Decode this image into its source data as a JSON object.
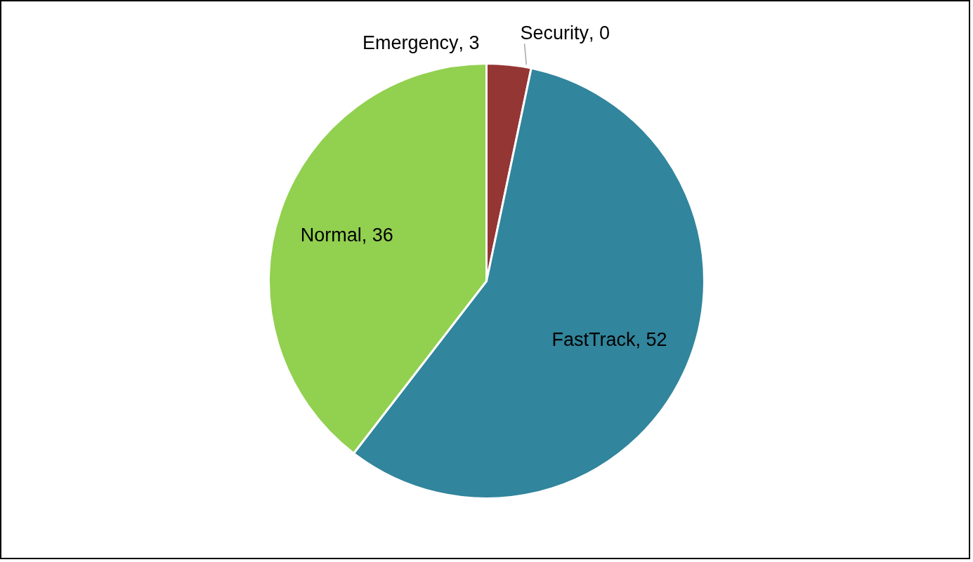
{
  "chart_data": {
    "type": "pie",
    "categories": [
      "Emergency",
      "Security",
      "FastTrack",
      "Normal"
    ],
    "values": [
      3,
      0,
      52,
      36
    ],
    "value_labels": [
      ", 3",
      ", 0",
      ", 52",
      ", 36"
    ],
    "colors": [
      "#943634",
      "#4f81bd",
      "#31859c",
      "#92d050"
    ]
  }
}
